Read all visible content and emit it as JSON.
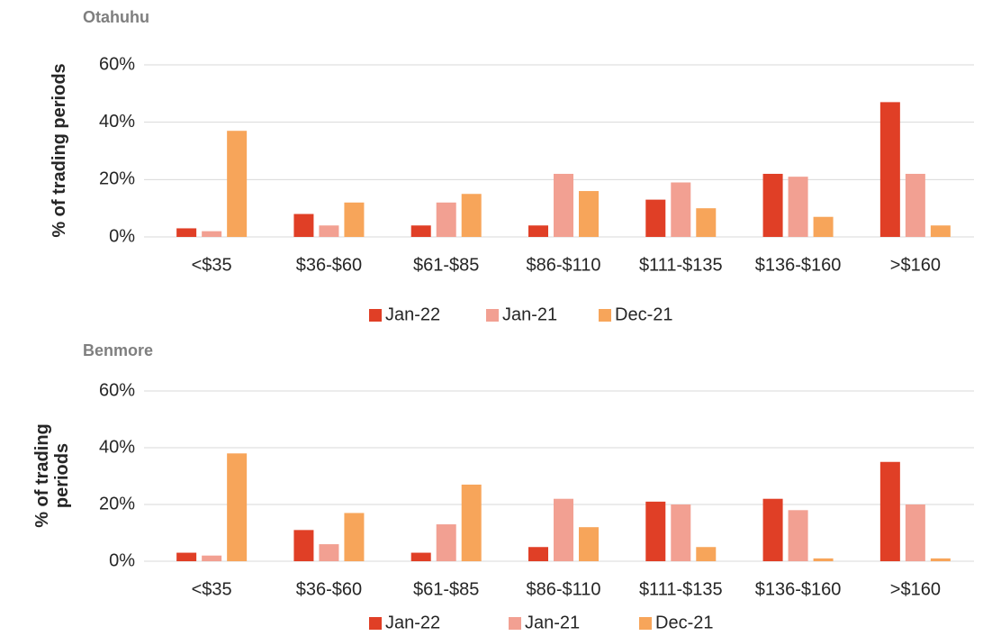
{
  "chart_data": [
    {
      "type": "bar",
      "title": "Otahuhu",
      "y_label": "% of trading periods",
      "categories": [
        "<$35",
        "$36-$60",
        "$61-$85",
        "$86-$110",
        "$111-$135",
        "$136-$160",
        ">$160"
      ],
      "series": [
        {
          "name": "Jan-22",
          "color": "#e03f26",
          "values": [
            3,
            8,
            4,
            4,
            13,
            22,
            47
          ]
        },
        {
          "name": "Jan-21",
          "color": "#f2a092",
          "values": [
            2,
            4,
            12,
            22,
            19,
            21,
            22
          ]
        },
        {
          "name": "Dec-21",
          "color": "#f7a55a",
          "values": [
            37,
            12,
            15,
            16,
            10,
            7,
            4
          ]
        }
      ],
      "ylim": [
        0,
        60
      ],
      "yticks": [
        {
          "value": 0,
          "label": "0%"
        },
        {
          "value": 20,
          "label": "20%"
        },
        {
          "value": 40,
          "label": "40%"
        },
        {
          "value": 60,
          "label": "60%"
        }
      ],
      "grid": true,
      "legend": "bottom"
    },
    {
      "type": "bar",
      "title": "Benmore",
      "y_label": "% of trading periods",
      "categories": [
        "<$35",
        "$36-$60",
        "$61-$85",
        "$86-$110",
        "$111-$135",
        "$136-$160",
        ">$160"
      ],
      "series": [
        {
          "name": "Jan-22",
          "color": "#e03f26",
          "values": [
            3,
            11,
            3,
            5,
            21,
            22,
            35
          ]
        },
        {
          "name": "Jan-21",
          "color": "#f2a092",
          "values": [
            2,
            6,
            13,
            22,
            20,
            18,
            20
          ]
        },
        {
          "name": "Dec-21",
          "color": "#f7a55a",
          "values": [
            38,
            17,
            27,
            12,
            5,
            1,
            1
          ]
        }
      ],
      "ylim": [
        0,
        60
      ],
      "yticks": [
        {
          "value": 0,
          "label": "0%"
        },
        {
          "value": 20,
          "label": "20%"
        },
        {
          "value": 40,
          "label": "40%"
        },
        {
          "value": 60,
          "label": "60%"
        }
      ],
      "grid": true,
      "legend": "bottom"
    }
  ]
}
